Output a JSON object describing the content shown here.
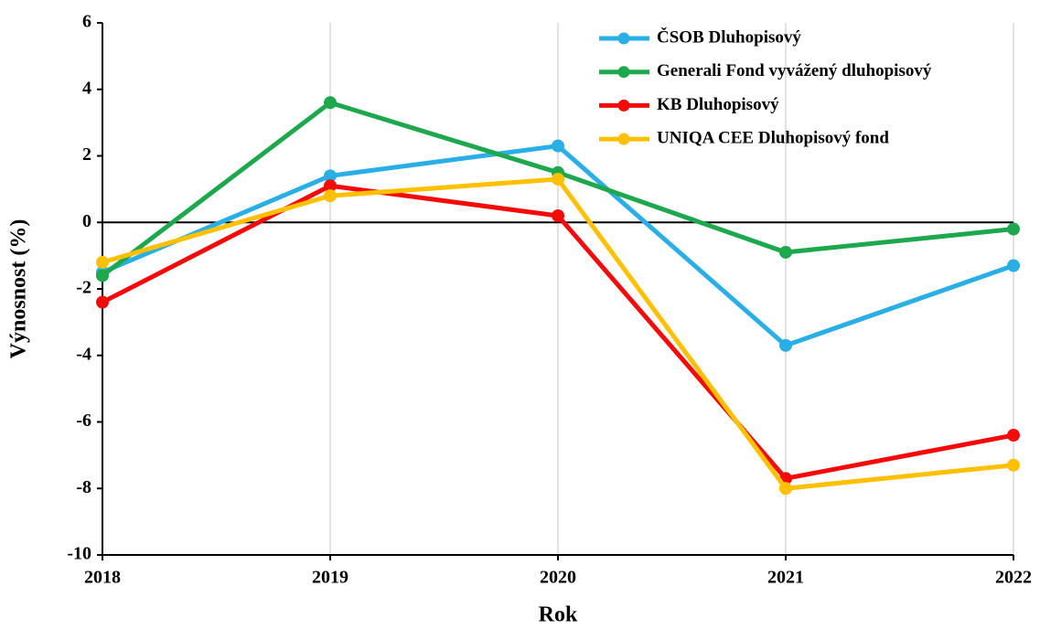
{
  "chart_data": {
    "type": "line",
    "x_label": "Rok",
    "y_label": "Výnosnost (%)",
    "x": [
      2018,
      2019,
      2020,
      2021,
      2022
    ],
    "xlim": [
      2018,
      2022
    ],
    "xticks": [
      2018,
      2019,
      2020,
      2021,
      2022
    ],
    "ylim": [
      -10,
      6
    ],
    "yticks": [
      -10,
      -8,
      -6,
      -4,
      -2,
      0,
      2,
      4,
      6
    ],
    "grid": true,
    "legend": "upper right",
    "series": [
      {
        "name": "ČSOB Dluhopisový",
        "color": "#2AAEE6",
        "values": [
          -1.5,
          1.4,
          2.3,
          -3.7,
          -1.3
        ]
      },
      {
        "name": "Generali Fond vyvážený dluhopisový",
        "color": "#1EA84E",
        "values": [
          -1.6,
          3.6,
          1.5,
          -0.9,
          -0.2
        ]
      },
      {
        "name": "KB Dluhopisový",
        "color": "#F50A0A",
        "values": [
          -2.4,
          1.1,
          0.2,
          -7.7,
          -6.4
        ]
      },
      {
        "name": "UNIQA CEE Dluhopisový fond",
        "color": "#FFC000",
        "values": [
          -1.2,
          0.8,
          1.3,
          -8.0,
          -7.3
        ]
      }
    ]
  }
}
